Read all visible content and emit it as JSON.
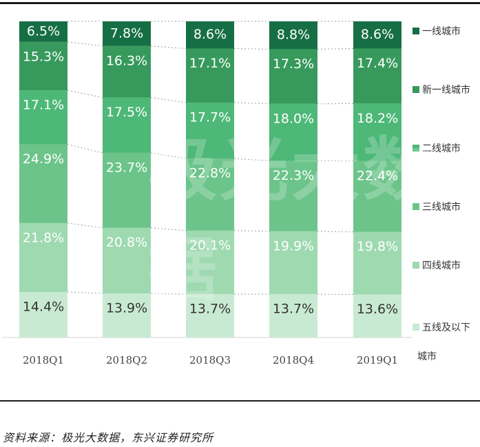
{
  "chart_data": {
    "type": "bar",
    "stacked": true,
    "categories": [
      "2018Q1",
      "2018Q2",
      "2018Q3",
      "2018Q4",
      "2019Q1"
    ],
    "series": [
      {
        "name": "五线及以下",
        "color": "#c9ead2",
        "text_color": "#333333",
        "values": [
          14.4,
          13.9,
          13.7,
          13.7,
          13.6
        ],
        "labels": [
          "14.4%",
          "13.9%",
          "13.7%",
          "13.7%",
          "13.6%"
        ]
      },
      {
        "name": "四线城市",
        "color": "#9ed9b0",
        "text_color": "#ffffff",
        "values": [
          21.8,
          20.8,
          20.1,
          19.9,
          19.8
        ],
        "labels": [
          "21.8%",
          "20.8%",
          "20.1%",
          "19.9%",
          "19.8%"
        ]
      },
      {
        "name": "三线城市",
        "color": "#6cc48a",
        "text_color": "#ffffff",
        "values": [
          24.9,
          23.7,
          22.8,
          22.3,
          22.4
        ],
        "labels": [
          "24.9%",
          "23.7%",
          "22.8%",
          "22.3%",
          "22.4%"
        ]
      },
      {
        "name": "二线城市",
        "color": "#4db877",
        "text_color": "#ffffff",
        "values": [
          17.1,
          17.5,
          17.7,
          18.0,
          18.2
        ],
        "labels": [
          "17.1%",
          "17.5%",
          "17.7%",
          "18.0%",
          "18.2%"
        ]
      },
      {
        "name": "新一线城市",
        "color": "#379a5c",
        "text_color": "#ffffff",
        "values": [
          15.3,
          16.3,
          17.1,
          17.3,
          17.4
        ],
        "labels": [
          "15.3%",
          "16.3%",
          "17.1%",
          "17.3%",
          "17.4%"
        ]
      },
      {
        "name": "一线城市",
        "color": "#166f44",
        "text_color": "#ffffff",
        "values": [
          6.5,
          7.8,
          8.6,
          8.8,
          8.6
        ],
        "labels": [
          "6.5%",
          "7.8%",
          "8.6%",
          "8.8%",
          "8.6%"
        ]
      }
    ],
    "ylim": [
      0,
      100
    ],
    "legend_position": "right",
    "legend_unit_label": "城市",
    "title": "",
    "xlabel": "",
    "ylabel": "",
    "watermark": "极光大数据",
    "source": "资料来源：极光大数据，东兴证券研究所"
  }
}
